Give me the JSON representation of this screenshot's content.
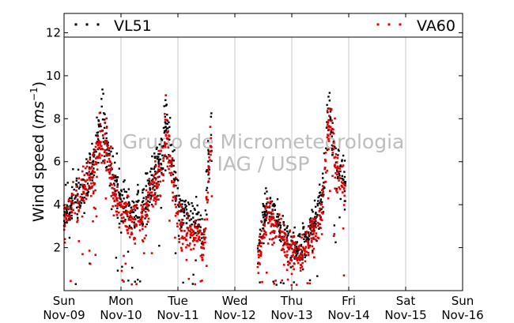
{
  "chart_data": {
    "type": "scatter",
    "ylabel_main": "Wind speed (",
    "ylabel_unit_base": "ms",
    "ylabel_unit_exp": "−1",
    "ylabel_close": ")",
    "ylim": [
      0,
      12.9
    ],
    "yticks": [
      2,
      4,
      6,
      8,
      10,
      12
    ],
    "xlim": [
      0,
      7
    ],
    "xticks": [
      {
        "day": "Sun",
        "date": "Nov-09"
      },
      {
        "day": "Mon",
        "date": "Nov-10"
      },
      {
        "day": "Tue",
        "date": "Nov-11"
      },
      {
        "day": "Wed",
        "date": "Nov-12"
      },
      {
        "day": "Thu",
        "date": "Nov-13"
      },
      {
        "day": "Fri",
        "date": "Nov-14"
      },
      {
        "day": "Sat",
        "date": "Nov-15"
      },
      {
        "day": "Sun",
        "date": "Nov-16"
      }
    ],
    "grid": "vertical",
    "legend_placement": "top",
    "watermark": [
      "Grupo de Micrometeorologia",
      "IAG / USP"
    ],
    "series": [
      {
        "name": "VL51",
        "color": "#000000",
        "segments": [
          {
            "t": [
              0.0,
              2.6
            ],
            "profile": [
              [
                0.0,
                3.5
              ],
              [
                0.2,
                4.3
              ],
              [
                0.35,
                4.6
              ],
              [
                0.5,
                5.5
              ],
              [
                0.65,
                8.0
              ],
              [
                0.75,
                7.0
              ],
              [
                0.9,
                4.8
              ],
              [
                1.15,
                3.8
              ],
              [
                1.35,
                3.5
              ],
              [
                1.5,
                4.8
              ],
              [
                1.7,
                6.0
              ],
              [
                1.8,
                8.0
              ],
              [
                1.9,
                6.0
              ],
              [
                2.05,
                3.6
              ],
              [
                2.2,
                3.2
              ],
              [
                2.35,
                3.3
              ],
              [
                2.45,
                2.3
              ],
              [
                2.55,
                6.5
              ],
              [
                2.6,
                7.5
              ]
            ]
          },
          {
            "t": [
              3.4,
              4.95
            ],
            "profile": [
              [
                3.4,
                1.5
              ],
              [
                3.55,
                4.0
              ],
              [
                3.75,
                3.2
              ],
              [
                3.95,
                2.2
              ],
              [
                4.1,
                2.0
              ],
              [
                4.25,
                2.3
              ],
              [
                4.45,
                3.5
              ],
              [
                4.55,
                4.5
              ],
              [
                4.65,
                8.2
              ],
              [
                4.8,
                6.0
              ],
              [
                4.95,
                5.0
              ]
            ]
          }
        ]
      },
      {
        "name": "VA60",
        "color": "#e00000",
        "segments": [
          {
            "t": [
              0.0,
              2.6
            ],
            "profile": [
              [
                0.0,
                3.3
              ],
              [
                0.2,
                4.0
              ],
              [
                0.35,
                4.8
              ],
              [
                0.5,
                5.3
              ],
              [
                0.65,
                7.0
              ],
              [
                0.75,
                6.5
              ],
              [
                0.9,
                4.3
              ],
              [
                1.15,
                3.3
              ],
              [
                1.35,
                3.0
              ],
              [
                1.5,
                4.4
              ],
              [
                1.7,
                5.5
              ],
              [
                1.8,
                7.5
              ],
              [
                1.9,
                5.2
              ],
              [
                2.05,
                3.0
              ],
              [
                2.2,
                2.6
              ],
              [
                2.35,
                2.7
              ],
              [
                2.45,
                1.8
              ],
              [
                2.55,
                6.0
              ],
              [
                2.6,
                7.0
              ]
            ]
          },
          {
            "t": [
              3.4,
              4.95
            ],
            "profile": [
              [
                3.4,
                1.3
              ],
              [
                3.55,
                3.5
              ],
              [
                3.75,
                2.8
              ],
              [
                3.95,
                1.8
              ],
              [
                4.1,
                1.6
              ],
              [
                4.25,
                2.0
              ],
              [
                4.45,
                3.0
              ],
              [
                4.55,
                4.0
              ],
              [
                4.65,
                8.0
              ],
              [
                4.8,
                5.5
              ],
              [
                4.95,
                4.5
              ]
            ]
          }
        ]
      }
    ]
  }
}
